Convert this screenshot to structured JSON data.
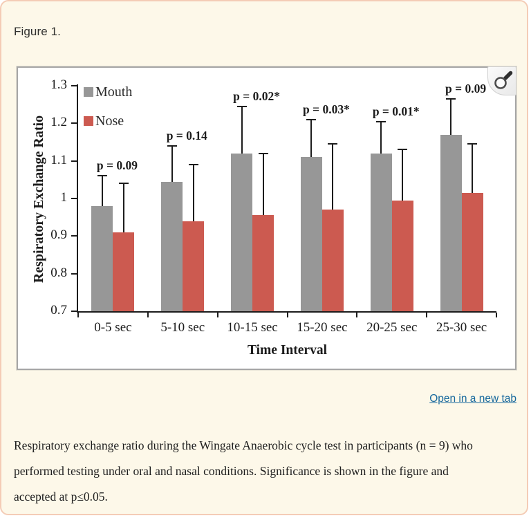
{
  "page": {
    "figure_label": "Figure 1."
  },
  "figure_panel": {
    "zoom_button_icon": "magnifier"
  },
  "links": {
    "open_new_tab": "Open in a new tab"
  },
  "caption": {
    "text": "Respiratory exchange ratio during the Wingate Anaerobic cycle test in participants (n = 9) who performed testing under oral and nasal conditions. Significance is shown in the figure and accepted at p≤0.05."
  },
  "chart_data": {
    "type": "bar",
    "title": "",
    "xlabel": "Time Interval",
    "ylabel": "Respiratory Exchange Ratio",
    "ylim": [
      0.7,
      1.3
    ],
    "yticks": [
      0.7,
      0.8,
      0.9,
      1,
      1.1,
      1.2,
      1.3
    ],
    "grid": false,
    "legend_position": "top-left",
    "categories": [
      "0-5 sec",
      "5-10 sec",
      "10-15 sec",
      "15-20 sec",
      "20-25 sec",
      "25-30 sec"
    ],
    "series": [
      {
        "name": "Mouth",
        "color": "#979797",
        "values": [
          0.98,
          1.045,
          1.12,
          1.11,
          1.12,
          1.17
        ],
        "error_top": [
          1.06,
          1.14,
          1.245,
          1.21,
          1.205,
          1.265
        ]
      },
      {
        "name": "Nose",
        "color": "#cc5a50",
        "values": [
          0.91,
          0.94,
          0.955,
          0.97,
          0.995,
          1.015
        ],
        "error_top": [
          1.04,
          1.09,
          1.12,
          1.145,
          1.13,
          1.145
        ]
      }
    ],
    "annotations": [
      "p = 0.09",
      "p = 0.14",
      "p = 0.02*",
      "p = 0.03*",
      "p = 0.01*",
      "p = 0.09"
    ]
  }
}
